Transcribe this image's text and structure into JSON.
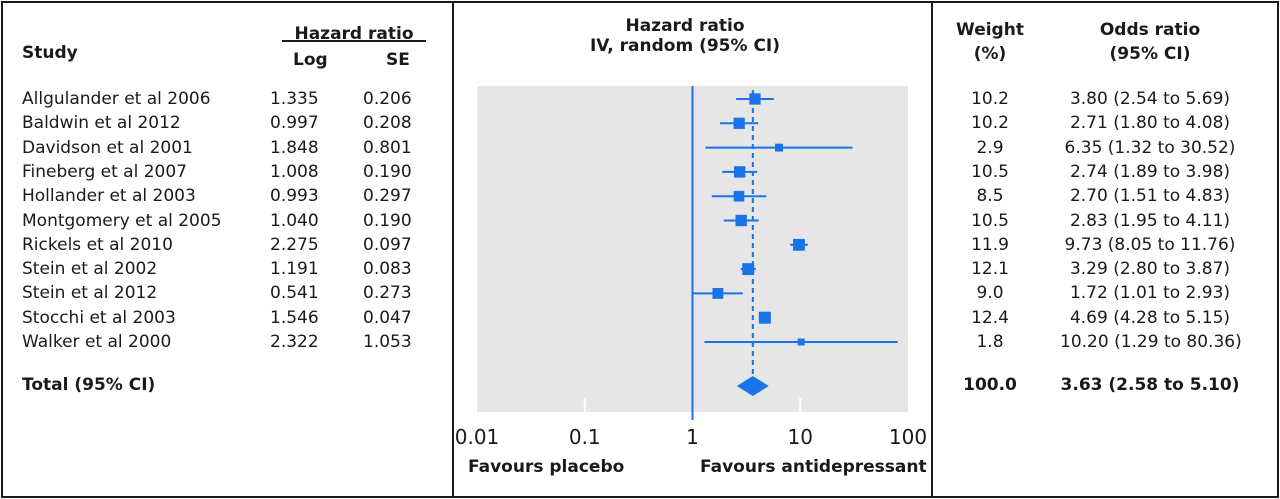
{
  "table": {
    "study_header": "Study",
    "hr_header": "Hazard ratio",
    "log_header": "Log",
    "se_header": "SE",
    "plot_header_line1": "Hazard ratio",
    "plot_header_line2": "IV, random (95% CI)",
    "weight_header_line1": "Weight",
    "weight_header_line2": "(%)",
    "or_header_line1": "Odds ratio",
    "or_header_line2": "(95% CI)",
    "rows": [
      {
        "study": "Allgulander et al 2006",
        "log": "1.335",
        "se": "0.206",
        "weight": "10.2",
        "or_text": "3.80 (2.54 to 5.69)"
      },
      {
        "study": "Baldwin et al 2012",
        "log": "0.997",
        "se": "0.208",
        "weight": "10.2",
        "or_text": "2.71 (1.80 to 4.08)"
      },
      {
        "study": "Davidson et al 2001",
        "log": "1.848",
        "se": "0.801",
        "weight": "2.9",
        "or_text": "6.35 (1.32 to 30.52)"
      },
      {
        "study": "Fineberg et al 2007",
        "log": "1.008",
        "se": "0.190",
        "weight": "10.5",
        "or_text": "2.74 (1.89 to 3.98)"
      },
      {
        "study": "Hollander et al 2003",
        "log": "0.993",
        "se": "0.297",
        "weight": "8.5",
        "or_text": "2.70 (1.51 to 4.83)"
      },
      {
        "study": "Montgomery et al 2005",
        "log": "1.040",
        "se": "0.190",
        "weight": "10.5",
        "or_text": "2.83 (1.95 to 4.11)"
      },
      {
        "study": "Rickels et al 2010",
        "log": "2.275",
        "se": "0.097",
        "weight": "11.9",
        "or_text": "9.73 (8.05 to 11.76)"
      },
      {
        "study": "Stein et al 2002",
        "log": "1.191",
        "se": "0.083",
        "weight": "12.1",
        "or_text": "3.29 (2.80 to 3.87)"
      },
      {
        "study": "Stein et al 2012",
        "log": "0.541",
        "se": "0.273",
        "weight": "9.0",
        "or_text": "1.72 (1.01 to 2.93)"
      },
      {
        "study": "Stocchi et al 2003",
        "log": "1.546",
        "se": "0.047",
        "weight": "12.4",
        "or_text": "4.69 (4.28 to 5.15)"
      },
      {
        "study": "Walker et al 2000",
        "log": "2.322",
        "se": "1.053",
        "weight": "1.8",
        "or_text": "10.20 (1.29 to 80.36)"
      }
    ],
    "total": {
      "label": "Total (95% CI)",
      "weight": "100.0",
      "or_text": "3.63 (2.58 to 5.10)"
    },
    "favours_left": "Favours placebo",
    "favours_right": "Favours antidepressant"
  },
  "chart_data": {
    "type": "forest",
    "scale": "log",
    "xlim": [
      0.01,
      100
    ],
    "ticks": [
      0.01,
      0.1,
      1,
      10,
      100
    ],
    "tick_labels": [
      "0.01",
      "0.1",
      "1",
      "10",
      "100"
    ],
    "null_value": 1,
    "studies": [
      {
        "estimate": 3.8,
        "lower": 2.54,
        "upper": 5.69,
        "weight": 10.2
      },
      {
        "estimate": 2.71,
        "lower": 1.8,
        "upper": 4.08,
        "weight": 10.2
      },
      {
        "estimate": 6.35,
        "lower": 1.32,
        "upper": 30.52,
        "weight": 2.9
      },
      {
        "estimate": 2.74,
        "lower": 1.89,
        "upper": 3.98,
        "weight": 10.5
      },
      {
        "estimate": 2.7,
        "lower": 1.51,
        "upper": 4.83,
        "weight": 8.5
      },
      {
        "estimate": 2.83,
        "lower": 1.95,
        "upper": 4.11,
        "weight": 10.5
      },
      {
        "estimate": 9.73,
        "lower": 8.05,
        "upper": 11.76,
        "weight": 11.9
      },
      {
        "estimate": 3.29,
        "lower": 2.8,
        "upper": 3.87,
        "weight": 12.1
      },
      {
        "estimate": 1.72,
        "lower": 1.01,
        "upper": 2.93,
        "weight": 9.0
      },
      {
        "estimate": 4.69,
        "lower": 4.28,
        "upper": 5.15,
        "weight": 12.4
      },
      {
        "estimate": 10.2,
        "lower": 1.29,
        "upper": 80.36,
        "weight": 1.8
      }
    ],
    "pooled": {
      "estimate": 3.63,
      "lower": 2.58,
      "upper": 5.1
    },
    "colors": {
      "marker": "#1a73e8",
      "panel": "#e6e6e6",
      "border": "#1a1a1a"
    }
  }
}
